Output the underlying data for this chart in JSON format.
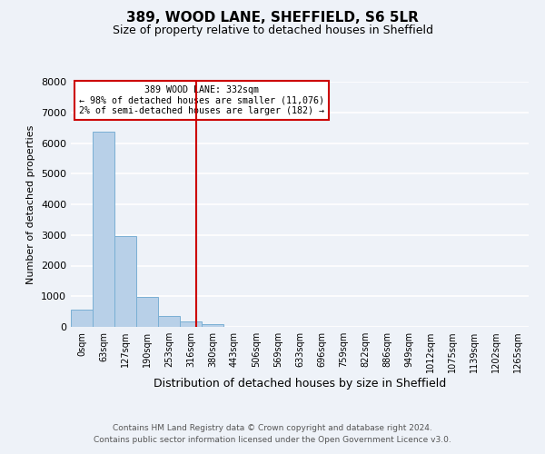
{
  "title": "389, WOOD LANE, SHEFFIELD, S6 5LR",
  "subtitle": "Size of property relative to detached houses in Sheffield",
  "xlabel": "Distribution of detached houses by size in Sheffield",
  "ylabel": "Number of detached properties",
  "bar_labels": [
    "0sqm",
    "63sqm",
    "127sqm",
    "190sqm",
    "253sqm",
    "316sqm",
    "380sqm",
    "443sqm",
    "506sqm",
    "569sqm",
    "633sqm",
    "696sqm",
    "759sqm",
    "822sqm",
    "886sqm",
    "949sqm",
    "1012sqm",
    "1075sqm",
    "1139sqm",
    "1202sqm",
    "1265sqm"
  ],
  "bar_values": [
    550,
    6380,
    2950,
    975,
    370,
    175,
    90,
    0,
    0,
    0,
    0,
    0,
    0,
    0,
    0,
    0,
    0,
    0,
    0,
    0,
    0
  ],
  "bar_color": "#b8d0e8",
  "bar_edge_color": "#7aafd4",
  "ylim": [
    0,
    8000
  ],
  "yticks": [
    0,
    1000,
    2000,
    3000,
    4000,
    5000,
    6000,
    7000,
    8000
  ],
  "property_line_color": "#cc0000",
  "annotation_title": "389 WOOD LANE: 332sqm",
  "annotation_line1": "← 98% of detached houses are smaller (11,076)",
  "annotation_line2": "2% of semi-detached houses are larger (182) →",
  "annotation_box_color": "#cc0000",
  "footer1": "Contains HM Land Registry data © Crown copyright and database right 2024.",
  "footer2": "Contains public sector information licensed under the Open Government Licence v3.0.",
  "background_color": "#eef2f8",
  "plot_bg_color": "#eef2f8"
}
